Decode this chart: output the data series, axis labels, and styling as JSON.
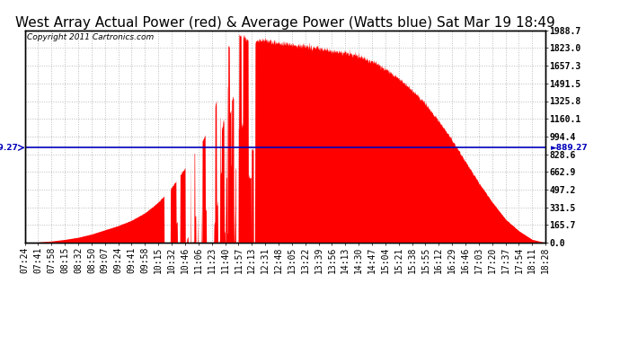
{
  "title": "West Array Actual Power (red) & Average Power (Watts blue) Sat Mar 19 18:49",
  "copyright_text": "Copyright 2011 Cartronics.com",
  "avg_power": 889.27,
  "y_max": 1988.7,
  "y_ticks": [
    0.0,
    165.7,
    331.5,
    497.2,
    662.9,
    828.6,
    994.4,
    1160.1,
    1325.8,
    1491.5,
    1657.3,
    1823.0,
    1988.7
  ],
  "y_tick_labels": [
    "0.0",
    "165.7",
    "331.5",
    "497.2",
    "662.9",
    "828.6",
    "994.4",
    "1160.1",
    "1325.8",
    "1491.5",
    "1657.3",
    "1823.0",
    "1988.7"
  ],
  "x_tick_labels": [
    "07:24",
    "07:41",
    "07:58",
    "08:15",
    "08:32",
    "08:50",
    "09:07",
    "09:24",
    "09:41",
    "09:58",
    "10:15",
    "10:32",
    "10:46",
    "11:06",
    "11:23",
    "11:40",
    "11:57",
    "12:13",
    "12:31",
    "12:48",
    "13:05",
    "13:22",
    "13:39",
    "13:56",
    "14:13",
    "14:30",
    "14:47",
    "15:04",
    "15:21",
    "15:38",
    "15:55",
    "16:12",
    "16:29",
    "16:46",
    "17:03",
    "17:20",
    "17:37",
    "17:54",
    "18:11",
    "18:28"
  ],
  "background_color": "#ffffff",
  "fill_color": "#ff0000",
  "line_color": "#0000bb",
  "grid_color": "#bbbbbb",
  "title_fontsize": 11,
  "axis_fontsize": 7
}
